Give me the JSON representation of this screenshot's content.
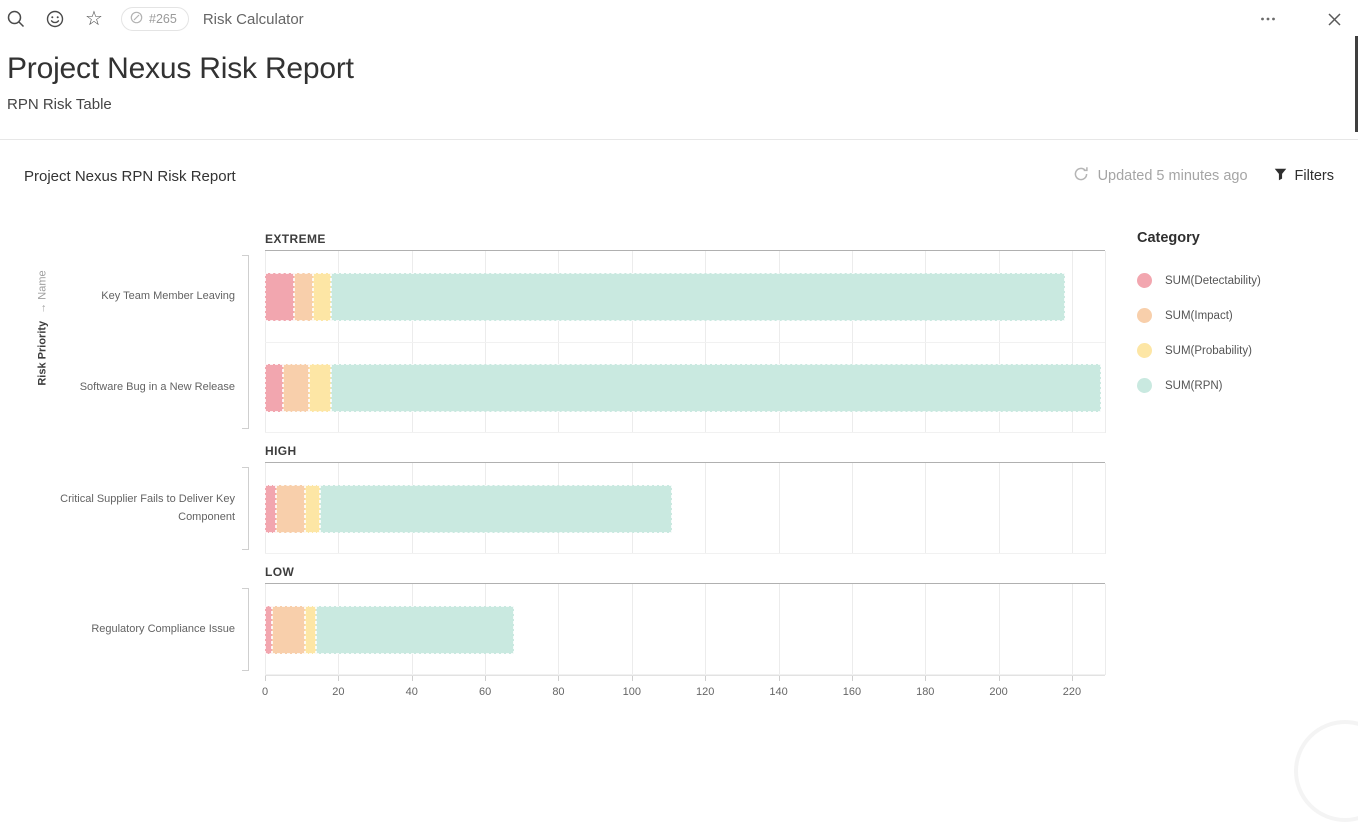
{
  "top_bar": {
    "badge": "#265",
    "title": "Risk Calculator"
  },
  "page": {
    "title": "Project Nexus Risk Report",
    "subtitle": "RPN Risk Table"
  },
  "widget": {
    "title": "Project Nexus RPN Risk Report",
    "updated": "Updated 5 minutes ago",
    "filters": "Filters"
  },
  "legend": {
    "title": "Category",
    "position": "right"
  },
  "chart_data": {
    "type": "bar",
    "orientation": "horizontal",
    "stacked": true,
    "grid": true,
    "title": "Project Nexus RPN Risk Report",
    "y_axis_title": {
      "primary": "Risk Priority",
      "secondary": "→ Name"
    },
    "x_ticks": [
      0,
      20,
      40,
      60,
      80,
      100,
      120,
      140,
      160,
      180,
      200,
      220
    ],
    "xlim": [
      0,
      229
    ],
    "series": [
      {
        "name": "SUM(Detectability)",
        "color": "#f2a6af",
        "pattern": "solid"
      },
      {
        "name": "SUM(Impact)",
        "color": "#f8cfab",
        "pattern": "dots"
      },
      {
        "name": "SUM(Probability)",
        "color": "#fde6a5",
        "pattern": "solid"
      },
      {
        "name": "SUM(RPN)",
        "color": "#c9e9e0",
        "pattern": "solid"
      }
    ],
    "groups": [
      {
        "name": "EXTREME",
        "rows": [
          {
            "label": "Key Team Member Leaving",
            "values": [
              8,
              5,
              5,
              200
            ],
            "total": 218
          },
          {
            "label": "Software Bug in a New Release",
            "values": [
              5,
              7,
              6,
              210
            ],
            "total": 228
          }
        ]
      },
      {
        "name": "HIGH",
        "rows": [
          {
            "label": "Critical Supplier Fails to Deliver Key Component",
            "values": [
              3,
              8,
              4,
              96
            ],
            "total": 111
          }
        ]
      },
      {
        "name": "LOW",
        "rows": [
          {
            "label": "Regulatory Compliance Issue",
            "values": [
              2,
              9,
              3,
              54
            ],
            "total": 68
          }
        ]
      }
    ]
  }
}
